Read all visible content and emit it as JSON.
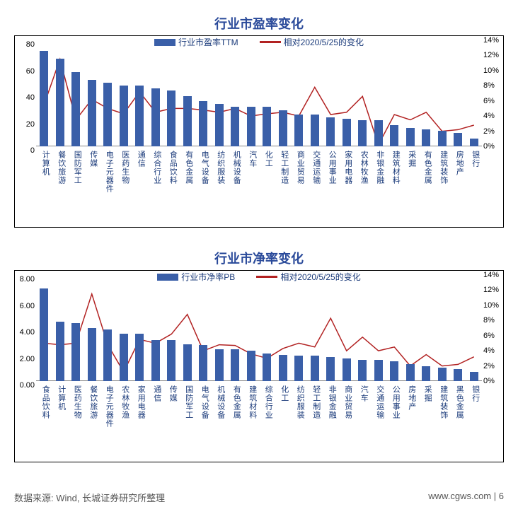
{
  "colors": {
    "bar": "#3a5fa8",
    "line": "#b22222",
    "text": "#1a3a7a",
    "title": "#2a4a9a",
    "axis": "#333333"
  },
  "chart1": {
    "title": "行业市盈率变化",
    "title_fontsize": 18,
    "legend_bar": "行业市盈率TTM",
    "legend_line": "相对2020/5/25的变化",
    "y_left": {
      "min": 0,
      "max": 80,
      "ticks": [
        0,
        20,
        40,
        60,
        80
      ]
    },
    "y_right": {
      "min": 0,
      "max": 14,
      "ticks": [
        0,
        2,
        4,
        6,
        8,
        10,
        12,
        14
      ],
      "suffix": "%"
    },
    "categories": [
      "计算机",
      "餐饮旅游",
      "国防军工",
      "传媒",
      "电子元器件",
      "医药生物",
      "通信",
      "综合行业",
      "食品饮料",
      "有色金属",
      "电气设备",
      "纺织服装",
      "机械设备",
      "汽车",
      "化工",
      "轻工制造",
      "商业贸易",
      "交通运输",
      "公用事业",
      "家用电器",
      "农林牧渔",
      "非银金融",
      "建筑材料",
      "采掘",
      "有色金属",
      "建筑装饰",
      "房地产",
      "银行"
    ],
    "bar_values": [
      72,
      66,
      56,
      50,
      48,
      46,
      46,
      44,
      42,
      38,
      34,
      32,
      30,
      30,
      30,
      27,
      24,
      24,
      22,
      21,
      20,
      20,
      16,
      14,
      13,
      12,
      10,
      6
    ],
    "line_values": [
      5.5,
      11.5,
      3.5,
      6.2,
      5.0,
      4.3,
      7.2,
      4.5,
      5.0,
      5.0,
      4.8,
      4.5,
      5.0,
      4.0,
      4.3,
      4.5,
      4.0,
      7.8,
      4.2,
      4.5,
      6.6,
      0.2,
      4.2,
      3.5,
      4.5,
      2.0,
      2.2,
      2.8
    ],
    "bar_width_ratio": 0.55
  },
  "chart2": {
    "title": "行业市净率变化",
    "title_fontsize": 18,
    "legend_bar": "行业市净率PB",
    "legend_line": "相对2020/5/25的变化",
    "y_left": {
      "min": 0,
      "max": 8,
      "ticks": [
        0,
        2,
        4,
        6,
        8
      ],
      "decimals": 2
    },
    "y_right": {
      "min": 0,
      "max": 14,
      "ticks": [
        0,
        2,
        4,
        6,
        8,
        10,
        12,
        14
      ],
      "suffix": "%"
    },
    "categories": [
      "食品饮料",
      "计算机",
      "医药生物",
      "餐饮旅游",
      "电子元器件",
      "农林牧渔",
      "家用电器",
      "通信",
      "传媒",
      "国防军工",
      "电气设备",
      "机械设备",
      "有色金属",
      "建筑材料",
      "综合行业",
      "化工",
      "纺织服装",
      "轻工制造",
      "非银金融",
      "商业贸易",
      "汽车",
      "交通运输",
      "公用事业",
      "房地产",
      "采掘",
      "建筑装饰",
      "黑色金属",
      "银行"
    ],
    "bar_values": [
      7.0,
      4.5,
      4.4,
      4.0,
      3.9,
      3.6,
      3.6,
      3.1,
      3.1,
      2.8,
      2.7,
      2.4,
      2.4,
      2.3,
      2.1,
      2.0,
      1.9,
      1.9,
      1.8,
      1.7,
      1.6,
      1.6,
      1.5,
      1.3,
      1.1,
      1.0,
      0.9,
      0.7
    ],
    "line_values": [
      5.0,
      4.8,
      5.0,
      11.5,
      4.8,
      1.2,
      5.5,
      5.0,
      6.2,
      8.8,
      4.0,
      4.8,
      4.7,
      3.6,
      3.0,
      4.3,
      5.0,
      4.5,
      8.3,
      4.0,
      5.8,
      4.0,
      4.5,
      2.0,
      3.5,
      2.0,
      2.2,
      3.2
    ],
    "bar_width_ratio": 0.55
  },
  "source_label": "数据来源: Wind, 长城证券研究所整理",
  "footer_url": "www.cgws.com",
  "footer_page": "6"
}
